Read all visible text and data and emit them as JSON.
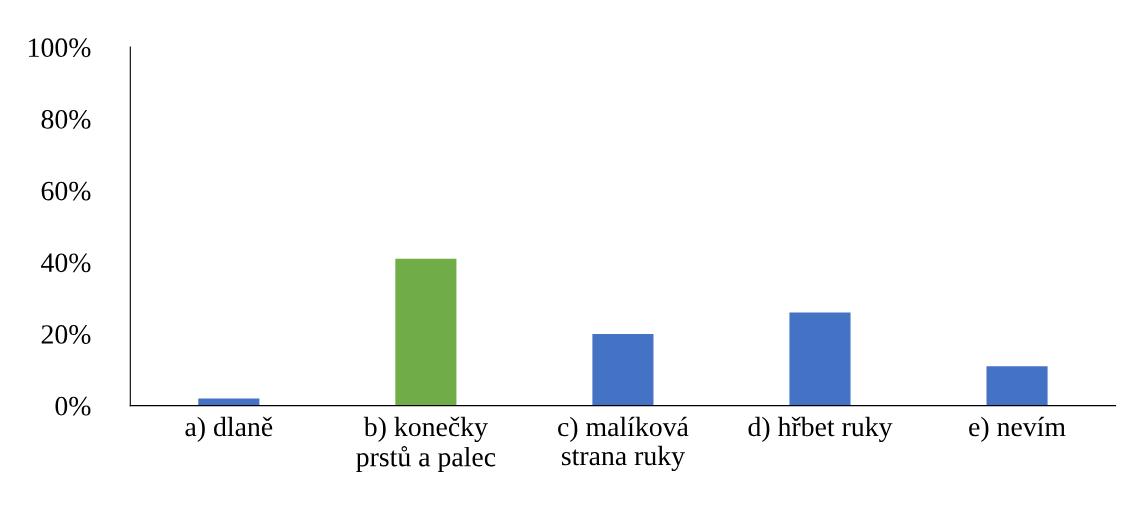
{
  "chart_data": {
    "type": "bar",
    "categories": [
      "a) dlaně",
      "b) konečky\nprstů a palec",
      "c) malíková\nstrana ruky",
      "d) hřbet ruky",
      "e) nevím"
    ],
    "values": [
      2,
      41,
      20,
      26,
      11
    ],
    "colors": [
      "#4472c4",
      "#70ad47",
      "#4472c4",
      "#4472c4",
      "#4472c4"
    ],
    "ylim": [
      0,
      100
    ],
    "yticks": [
      {
        "value": 0,
        "label": "0%"
      },
      {
        "value": 20,
        "label": "20%"
      },
      {
        "value": 40,
        "label": "40%"
      },
      {
        "value": 60,
        "label": "60%"
      },
      {
        "value": 80,
        "label": "80%"
      },
      {
        "value": 100,
        "label": "100%"
      }
    ],
    "grid": false
  }
}
